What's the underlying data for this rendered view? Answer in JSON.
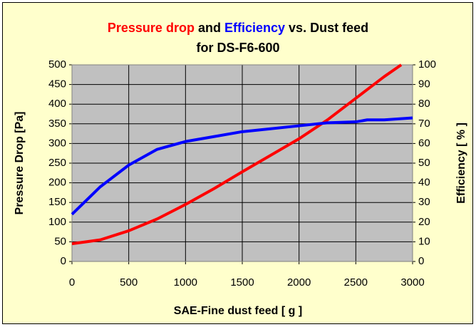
{
  "chart_data": {
    "type": "line",
    "title_parts": [
      "and",
      "vs. Dust feed"
    ],
    "title_line2": "for DS-F6-600",
    "xlabel": "SAE-Fine dust feed [ g ]",
    "ylabel": "Pressure Drop [Pa]",
    "y2label": "Efficiency [ % ]",
    "xlim": [
      0,
      3000
    ],
    "xticks": [
      0,
      500,
      1000,
      1500,
      2000,
      2500,
      3000
    ],
    "ylim": [
      0,
      500
    ],
    "yticks": [
      0,
      50,
      100,
      150,
      200,
      250,
      300,
      350,
      400,
      450,
      500
    ],
    "y2lim": [
      0,
      100
    ],
    "y2ticks": [
      0,
      10,
      20,
      30,
      40,
      50,
      60,
      70,
      80,
      90,
      100
    ],
    "grid": true,
    "series": [
      {
        "name": "Pressure drop",
        "color": "#ff0000",
        "x": [
          0,
          250,
          500,
          750,
          1000,
          1250,
          1500,
          1750,
          2000,
          2250,
          2500,
          2750,
          2900
        ],
        "values": [
          45,
          55,
          78,
          108,
          145,
          185,
          228,
          270,
          312,
          360,
          415,
          470,
          500
        ]
      },
      {
        "name": "Efficiency",
        "color": "#0000ff",
        "axis": "y2",
        "x": [
          0,
          250,
          500,
          750,
          1000,
          1250,
          1500,
          1750,
          2000,
          2250,
          2500,
          2600,
          2750,
          3000
        ],
        "values": [
          24,
          38,
          49,
          57,
          61,
          63.5,
          66,
          67.5,
          69,
          70.5,
          71,
          72,
          72,
          73
        ]
      }
    ]
  }
}
